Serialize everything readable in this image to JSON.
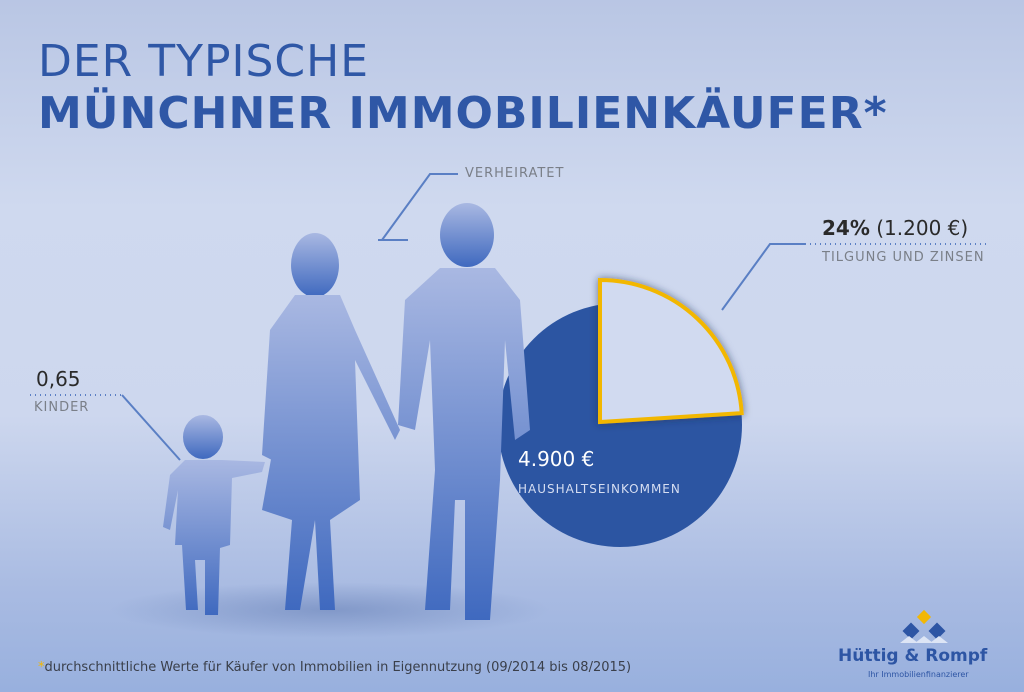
{
  "title": {
    "line1": "DER TYPISCHE",
    "line2": "MÜNCHNER IMMOBILIENKÄUFER*"
  },
  "labels": {
    "married": "VERHEIRATET",
    "children_value": "0,65",
    "children_label": "KINDER",
    "income_value": "4.900 €",
    "income_label": "HAUSHALTSEINKOMMEN",
    "repayment_percent": "24%",
    "repayment_amount": "(1.200 €)",
    "repayment_label": "TILGUNG UND ZINSEN"
  },
  "footnote": {
    "star": "*",
    "text": "durchschnittliche Werte für Käufer von Immobilien in Eigennutzung (09/2014 bis 08/2015)"
  },
  "logo": {
    "name": "Hüttig & Rompf",
    "tagline": "Ihr Immobilienfinanzierer"
  },
  "chart_data": {
    "type": "pie",
    "values": [
      24,
      76
    ],
    "total_label": "4.900 €"
  },
  "colors": {
    "title": "#2f57a6",
    "pie": "#2c55a2",
    "slice": "#d1daf0",
    "slice_border": "#f2b705"
  }
}
